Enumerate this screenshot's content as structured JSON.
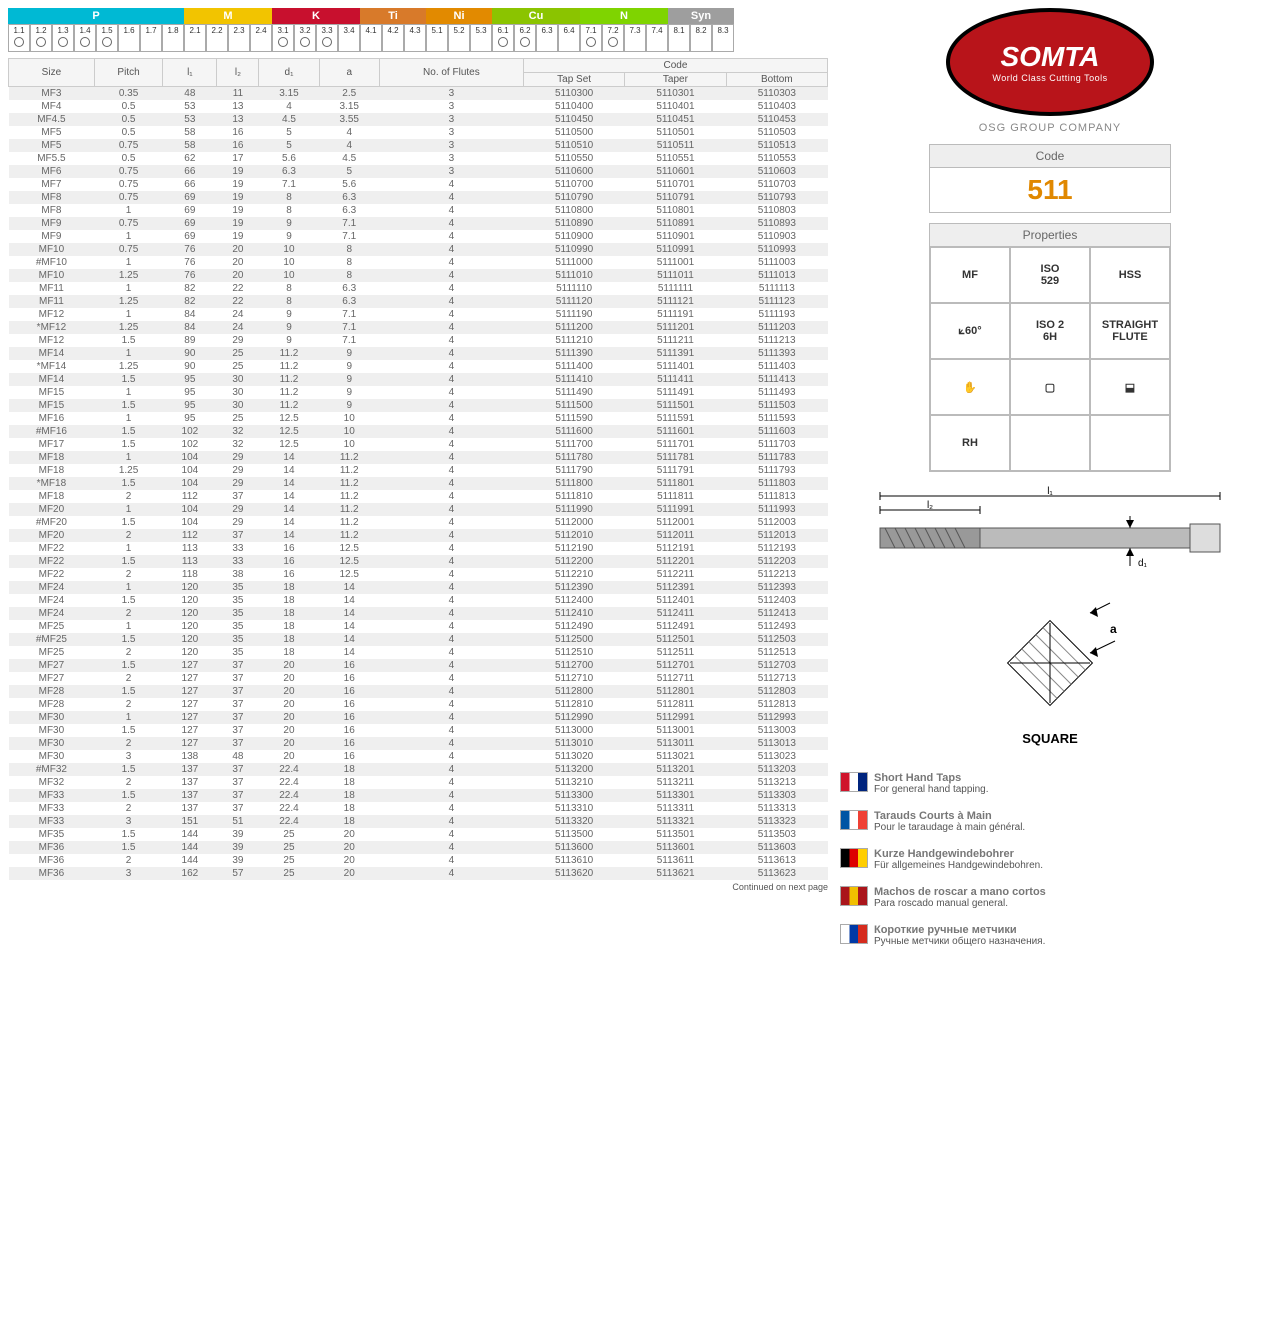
{
  "material_groups": [
    {
      "label": "P",
      "color": "#00b9d4",
      "cells": [
        "1.1",
        "1.2",
        "1.3",
        "1.4",
        "1.5",
        "1.6",
        "1.7",
        "1.8"
      ],
      "dots": [
        true,
        true,
        true,
        true,
        true,
        false,
        false,
        false
      ]
    },
    {
      "label": "M",
      "color": "#f2c400",
      "cells": [
        "2.1",
        "2.2",
        "2.3",
        "2.4"
      ],
      "dots": [
        false,
        false,
        false,
        false
      ]
    },
    {
      "label": "K",
      "color": "#c8102e",
      "cells": [
        "3.1",
        "3.2",
        "3.3",
        "3.4"
      ],
      "dots": [
        true,
        true,
        true,
        false
      ]
    },
    {
      "label": "Ti",
      "color": "#d87a2a",
      "cells": [
        "4.1",
        "4.2",
        "4.3"
      ],
      "dots": [
        false,
        false,
        false
      ]
    },
    {
      "label": "Ni",
      "color": "#e28a00",
      "cells": [
        "5.1",
        "5.2",
        "5.3"
      ],
      "dots": [
        false,
        false,
        false
      ]
    },
    {
      "label": "Cu",
      "color": "#8bc400",
      "cells": [
        "6.1",
        "6.2",
        "6.3",
        "6.4"
      ],
      "dots": [
        true,
        true,
        false,
        false
      ]
    },
    {
      "label": "N",
      "color": "#7fd400",
      "cells": [
        "7.1",
        "7.2",
        "7.3",
        "7.4"
      ],
      "dots": [
        true,
        true,
        false,
        false
      ]
    },
    {
      "label": "Syn",
      "color": "#9e9e9e",
      "cells": [
        "8.1",
        "8.2",
        "8.3"
      ],
      "dots": [
        false,
        false,
        false
      ]
    }
  ],
  "table": {
    "headers_row1": [
      "Size",
      "Pitch",
      "l₁",
      "l₂",
      "d₁",
      "a",
      "No. of\nFlutes",
      "Code"
    ],
    "headers_row2": [
      "Tap Set",
      "Taper",
      "Bottom"
    ],
    "continued": "Continued on next page",
    "rows": [
      [
        "MF3",
        "0.35",
        "48",
        "11",
        "3.15",
        "2.5",
        "3",
        "5110300",
        "5110301",
        "5110303"
      ],
      [
        "MF4",
        "0.5",
        "53",
        "13",
        "4",
        "3.15",
        "3",
        "5110400",
        "5110401",
        "5110403"
      ],
      [
        "MF4.5",
        "0.5",
        "53",
        "13",
        "4.5",
        "3.55",
        "3",
        "5110450",
        "5110451",
        "5110453"
      ],
      [
        "MF5",
        "0.5",
        "58",
        "16",
        "5",
        "4",
        "3",
        "5110500",
        "5110501",
        "5110503"
      ],
      [
        "MF5",
        "0.75",
        "58",
        "16",
        "5",
        "4",
        "3",
        "5110510",
        "5110511",
        "5110513"
      ],
      [
        "MF5.5",
        "0.5",
        "62",
        "17",
        "5.6",
        "4.5",
        "3",
        "5110550",
        "5110551",
        "5110553"
      ],
      [
        "MF6",
        "0.75",
        "66",
        "19",
        "6.3",
        "5",
        "3",
        "5110600",
        "5110601",
        "5110603"
      ],
      [
        "MF7",
        "0.75",
        "66",
        "19",
        "7.1",
        "5.6",
        "4",
        "5110700",
        "5110701",
        "5110703"
      ],
      [
        "MF8",
        "0.75",
        "69",
        "19",
        "8",
        "6.3",
        "4",
        "5110790",
        "5110791",
        "5110793"
      ],
      [
        "MF8",
        "1",
        "69",
        "19",
        "8",
        "6.3",
        "4",
        "5110800",
        "5110801",
        "5110803"
      ],
      [
        "MF9",
        "0.75",
        "69",
        "19",
        "9",
        "7.1",
        "4",
        "5110890",
        "5110891",
        "5110893"
      ],
      [
        "MF9",
        "1",
        "69",
        "19",
        "9",
        "7.1",
        "4",
        "5110900",
        "5110901",
        "5110903"
      ],
      [
        "MF10",
        "0.75",
        "76",
        "20",
        "10",
        "8",
        "4",
        "5110990",
        "5110991",
        "5110993"
      ],
      [
        "#MF10",
        "1",
        "76",
        "20",
        "10",
        "8",
        "4",
        "5111000",
        "5111001",
        "5111003"
      ],
      [
        "MF10",
        "1.25",
        "76",
        "20",
        "10",
        "8",
        "4",
        "5111010",
        "5111011",
        "5111013"
      ],
      [
        "MF11",
        "1",
        "82",
        "22",
        "8",
        "6.3",
        "4",
        "5111110",
        "5111111",
        "5111113"
      ],
      [
        "MF11",
        "1.25",
        "82",
        "22",
        "8",
        "6.3",
        "4",
        "5111120",
        "5111121",
        "5111123"
      ],
      [
        "MF12",
        "1",
        "84",
        "24",
        "9",
        "7.1",
        "4",
        "5111190",
        "5111191",
        "5111193"
      ],
      [
        "*MF12",
        "1.25",
        "84",
        "24",
        "9",
        "7.1",
        "4",
        "5111200",
        "5111201",
        "5111203"
      ],
      [
        "MF12",
        "1.5",
        "89",
        "29",
        "9",
        "7.1",
        "4",
        "5111210",
        "5111211",
        "5111213"
      ],
      [
        "MF14",
        "1",
        "90",
        "25",
        "11.2",
        "9",
        "4",
        "5111390",
        "5111391",
        "5111393"
      ],
      [
        "*MF14",
        "1.25",
        "90",
        "25",
        "11.2",
        "9",
        "4",
        "5111400",
        "5111401",
        "5111403"
      ],
      [
        "MF14",
        "1.5",
        "95",
        "30",
        "11.2",
        "9",
        "4",
        "5111410",
        "5111411",
        "5111413"
      ],
      [
        "MF15",
        "1",
        "95",
        "30",
        "11.2",
        "9",
        "4",
        "5111490",
        "5111491",
        "5111493"
      ],
      [
        "MF15",
        "1.5",
        "95",
        "30",
        "11.2",
        "9",
        "4",
        "5111500",
        "5111501",
        "5111503"
      ],
      [
        "MF16",
        "1",
        "95",
        "25",
        "12.5",
        "10",
        "4",
        "5111590",
        "5111591",
        "5111593"
      ],
      [
        "#MF16",
        "1.5",
        "102",
        "32",
        "12.5",
        "10",
        "4",
        "5111600",
        "5111601",
        "5111603"
      ],
      [
        "MF17",
        "1.5",
        "102",
        "32",
        "12.5",
        "10",
        "4",
        "5111700",
        "5111701",
        "5111703"
      ],
      [
        "MF18",
        "1",
        "104",
        "29",
        "14",
        "11.2",
        "4",
        "5111780",
        "5111781",
        "5111783"
      ],
      [
        "MF18",
        "1.25",
        "104",
        "29",
        "14",
        "11.2",
        "4",
        "5111790",
        "5111791",
        "5111793"
      ],
      [
        "*MF18",
        "1.5",
        "104",
        "29",
        "14",
        "11.2",
        "4",
        "5111800",
        "5111801",
        "5111803"
      ],
      [
        "MF18",
        "2",
        "112",
        "37",
        "14",
        "11.2",
        "4",
        "5111810",
        "5111811",
        "5111813"
      ],
      [
        "MF20",
        "1",
        "104",
        "29",
        "14",
        "11.2",
        "4",
        "5111990",
        "5111991",
        "5111993"
      ],
      [
        "#MF20",
        "1.5",
        "104",
        "29",
        "14",
        "11.2",
        "4",
        "5112000",
        "5112001",
        "5112003"
      ],
      [
        "MF20",
        "2",
        "112",
        "37",
        "14",
        "11.2",
        "4",
        "5112010",
        "5112011",
        "5112013"
      ],
      [
        "MF22",
        "1",
        "113",
        "33",
        "16",
        "12.5",
        "4",
        "5112190",
        "5112191",
        "5112193"
      ],
      [
        "MF22",
        "1.5",
        "113",
        "33",
        "16",
        "12.5",
        "4",
        "5112200",
        "5112201",
        "5112203"
      ],
      [
        "MF22",
        "2",
        "118",
        "38",
        "16",
        "12.5",
        "4",
        "5112210",
        "5112211",
        "5112213"
      ],
      [
        "MF24",
        "1",
        "120",
        "35",
        "18",
        "14",
        "4",
        "5112390",
        "5112391",
        "5112393"
      ],
      [
        "MF24",
        "1.5",
        "120",
        "35",
        "18",
        "14",
        "4",
        "5112400",
        "5112401",
        "5112403"
      ],
      [
        "MF24",
        "2",
        "120",
        "35",
        "18",
        "14",
        "4",
        "5112410",
        "5112411",
        "5112413"
      ],
      [
        "MF25",
        "1",
        "120",
        "35",
        "18",
        "14",
        "4",
        "5112490",
        "5112491",
        "5112493"
      ],
      [
        "#MF25",
        "1.5",
        "120",
        "35",
        "18",
        "14",
        "4",
        "5112500",
        "5112501",
        "5112503"
      ],
      [
        "MF25",
        "2",
        "120",
        "35",
        "18",
        "14",
        "4",
        "5112510",
        "5112511",
        "5112513"
      ],
      [
        "MF27",
        "1.5",
        "127",
        "37",
        "20",
        "16",
        "4",
        "5112700",
        "5112701",
        "5112703"
      ],
      [
        "MF27",
        "2",
        "127",
        "37",
        "20",
        "16",
        "4",
        "5112710",
        "5112711",
        "5112713"
      ],
      [
        "MF28",
        "1.5",
        "127",
        "37",
        "20",
        "16",
        "4",
        "5112800",
        "5112801",
        "5112803"
      ],
      [
        "MF28",
        "2",
        "127",
        "37",
        "20",
        "16",
        "4",
        "5112810",
        "5112811",
        "5112813"
      ],
      [
        "MF30",
        "1",
        "127",
        "37",
        "20",
        "16",
        "4",
        "5112990",
        "5112991",
        "5112993"
      ],
      [
        "MF30",
        "1.5",
        "127",
        "37",
        "20",
        "16",
        "4",
        "5113000",
        "5113001",
        "5113003"
      ],
      [
        "MF30",
        "2",
        "127",
        "37",
        "20",
        "16",
        "4",
        "5113010",
        "5113011",
        "5113013"
      ],
      [
        "MF30",
        "3",
        "138",
        "48",
        "20",
        "16",
        "4",
        "5113020",
        "5113021",
        "5113023"
      ],
      [
        "#MF32",
        "1.5",
        "137",
        "37",
        "22.4",
        "18",
        "4",
        "5113200",
        "5113201",
        "5113203"
      ],
      [
        "MF32",
        "2",
        "137",
        "37",
        "22.4",
        "18",
        "4",
        "5113210",
        "5113211",
        "5113213"
      ],
      [
        "MF33",
        "1.5",
        "137",
        "37",
        "22.4",
        "18",
        "4",
        "5113300",
        "5113301",
        "5113303"
      ],
      [
        "MF33",
        "2",
        "137",
        "37",
        "22.4",
        "18",
        "4",
        "5113310",
        "5113311",
        "5113313"
      ],
      [
        "MF33",
        "3",
        "151",
        "51",
        "22.4",
        "18",
        "4",
        "5113320",
        "5113321",
        "5113323"
      ],
      [
        "MF35",
        "1.5",
        "144",
        "39",
        "25",
        "20",
        "4",
        "5113500",
        "5113501",
        "5113503"
      ],
      [
        "MF36",
        "1.5",
        "144",
        "39",
        "25",
        "20",
        "4",
        "5113600",
        "5113601",
        "5113603"
      ],
      [
        "MF36",
        "2",
        "144",
        "39",
        "25",
        "20",
        "4",
        "5113610",
        "5113611",
        "5113613"
      ],
      [
        "MF36",
        "3",
        "162",
        "57",
        "25",
        "20",
        "4",
        "5113620",
        "5113621",
        "5113623"
      ]
    ]
  },
  "brand": {
    "name": "SOMTA",
    "tagline": "World Class Cutting Tools",
    "subtitle": "OSG GROUP COMPANY",
    "logo_bg": "#b8141a",
    "logo_border": "#000000"
  },
  "code_box": {
    "label": "Code",
    "value": "511",
    "value_color": "#e08800"
  },
  "properties": {
    "label": "Properties",
    "cells": [
      "MF",
      "ISO\n529",
      "HSS",
      "⟀60°",
      "ISO 2\n6H",
      "STRAIGHT\nFLUTE",
      "✋",
      "▢",
      "⬓",
      "RH",
      "",
      ""
    ]
  },
  "tap_diagram": {
    "l1": "l₁",
    "l2": "l₂",
    "d1": "d₁"
  },
  "square_diagram": {
    "a": "a",
    "caption": "SQUARE"
  },
  "languages": [
    {
      "code": "EN",
      "flag_colors": [
        "#cf142b",
        "#ffffff",
        "#00247d"
      ],
      "title": "Short Hand Taps",
      "sub": "For general hand tapping."
    },
    {
      "code": "FR",
      "flag_colors": [
        "#0055a4",
        "#ffffff",
        "#ef4135"
      ],
      "title": "Tarauds Courts à Main",
      "sub": "Pour le taraudage à main général."
    },
    {
      "code": "DE",
      "flag_colors": [
        "#000000",
        "#dd0000",
        "#ffce00"
      ],
      "title": "Kurze Handgewindebohrer",
      "sub": "Für allgemeines Handgewindebohren."
    },
    {
      "code": "ES",
      "flag_colors": [
        "#aa151b",
        "#f1bf00",
        "#aa151b"
      ],
      "title": "Machos de roscar a mano cortos",
      "sub": "Para roscado manual general."
    },
    {
      "code": "PY",
      "flag_colors": [
        "#ffffff",
        "#0039a6",
        "#d52b1e"
      ],
      "title": "Короткие ручные метчики",
      "sub": "Ручные метчики общего назначения."
    }
  ]
}
